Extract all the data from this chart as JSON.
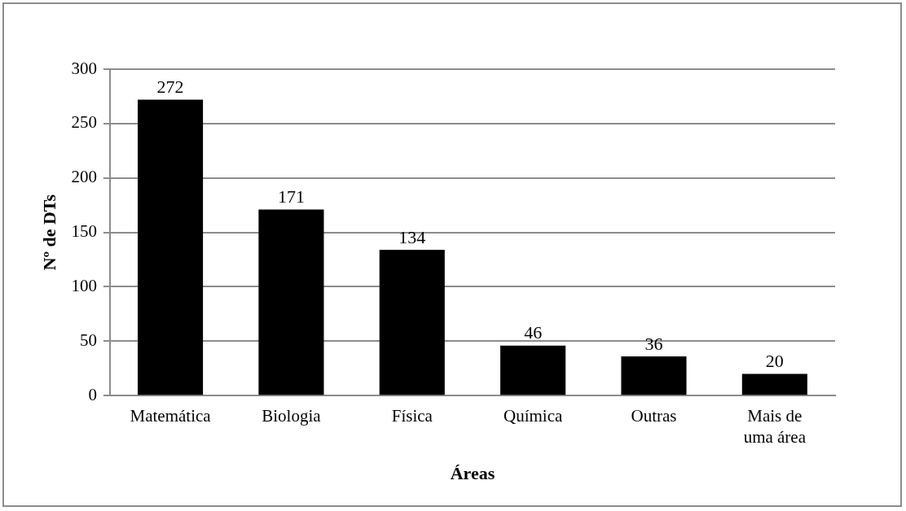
{
  "chart_data": {
    "type": "bar",
    "xlabel": "Áreas",
    "ylabel": "Nº de DTs",
    "categories": [
      "Matemática",
      "Biologia",
      "Física",
      "Química",
      "Outras",
      "Mais de uma área"
    ],
    "values": [
      272,
      171,
      134,
      46,
      36,
      20
    ],
    "color": "#000000",
    "ylim": [
      0,
      300
    ],
    "yticks": [
      0,
      50,
      100,
      150,
      200,
      250,
      300
    ],
    "grid": "y",
    "data_labels": true,
    "legend": false
  }
}
